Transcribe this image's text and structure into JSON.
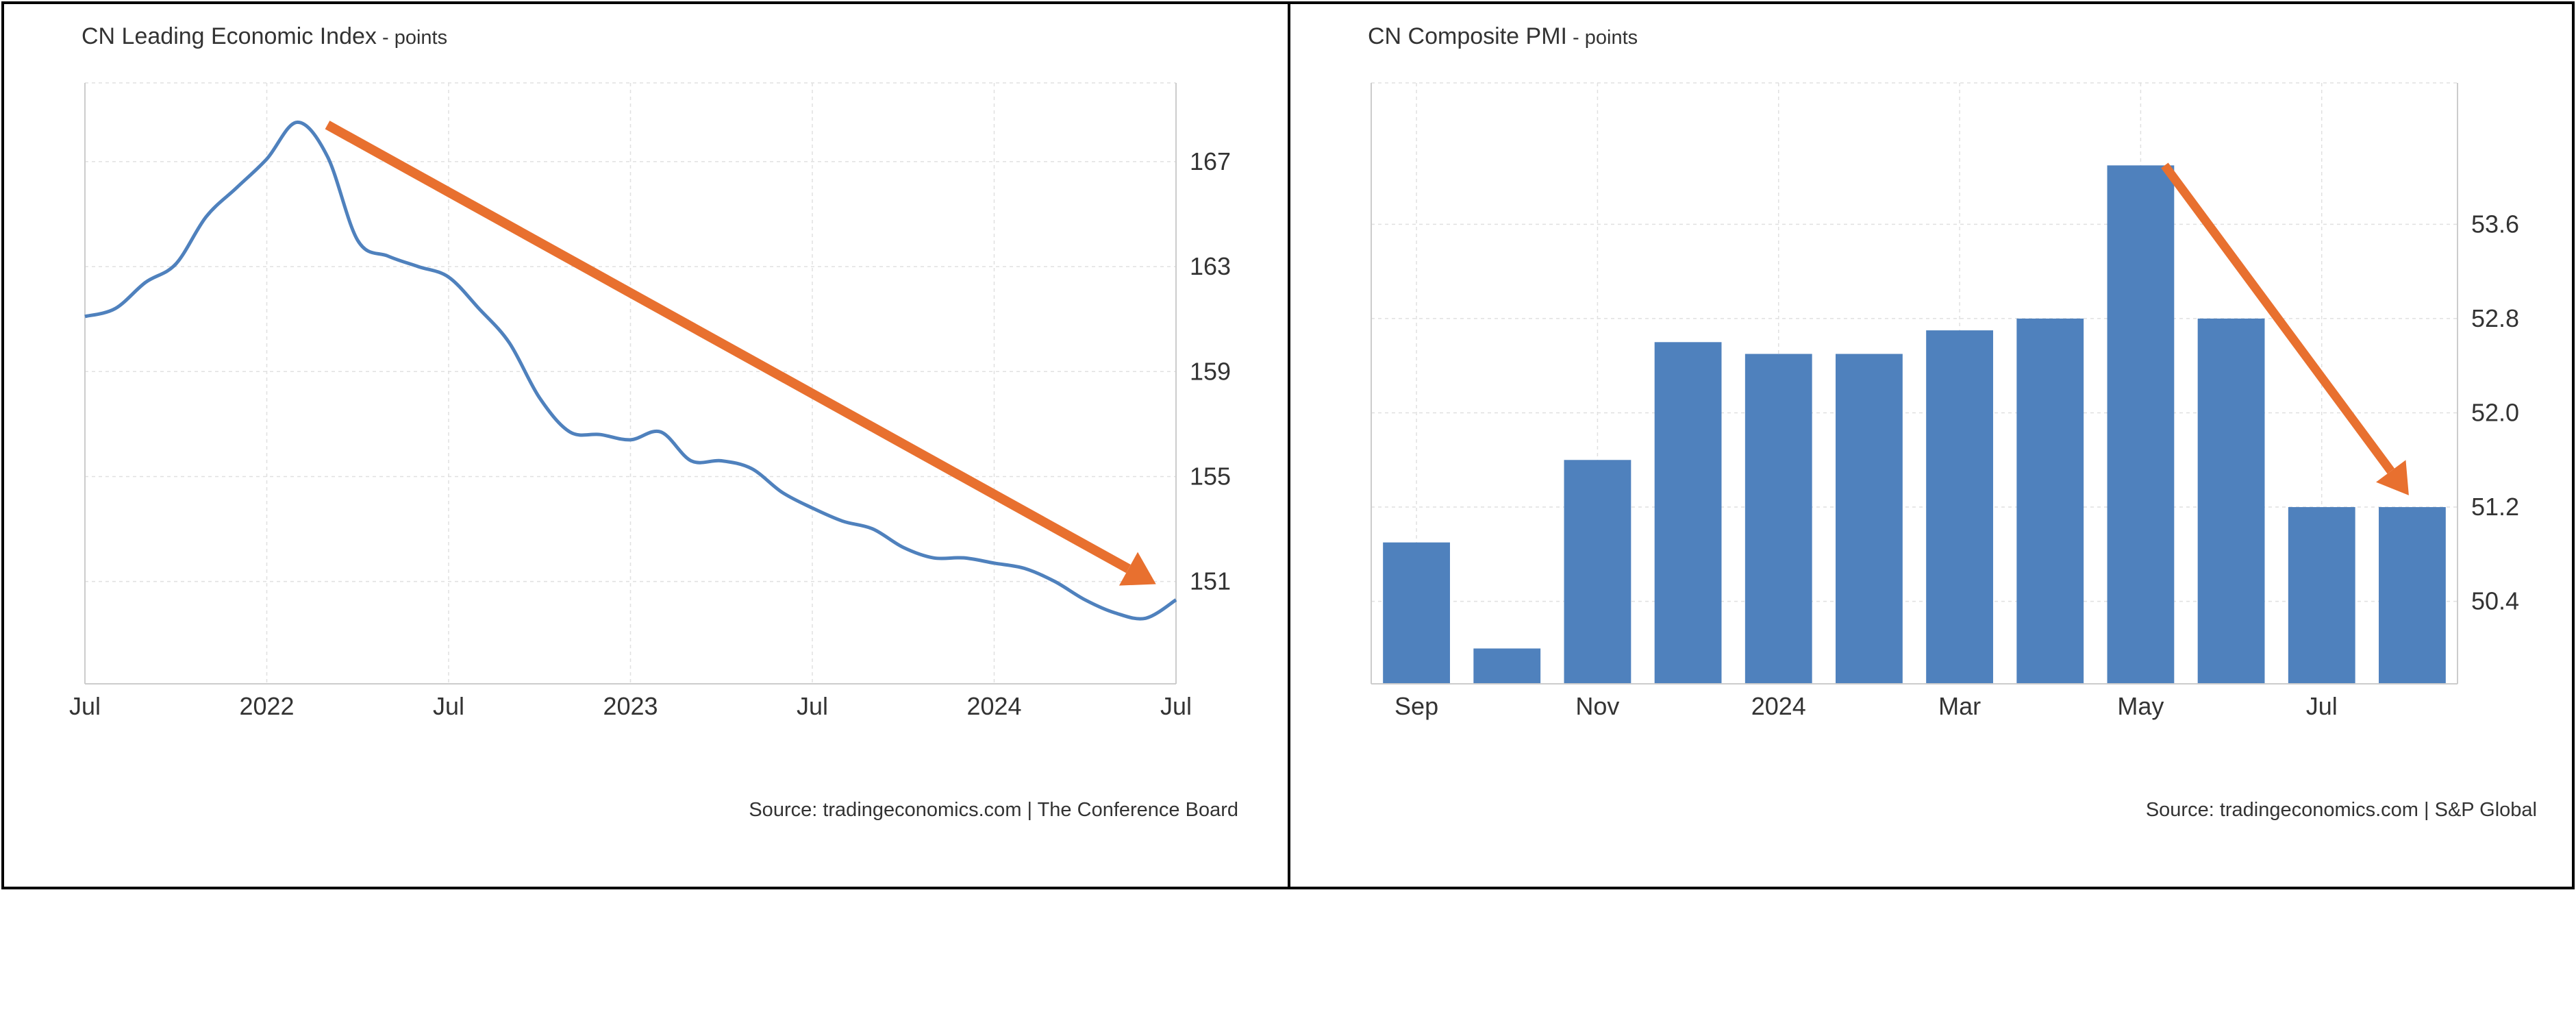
{
  "colors": {
    "series": "#4f81bd",
    "arrow": "#e8702f",
    "grid": "#e0e0e0",
    "axis": "#cccccc",
    "border": "#000000"
  },
  "charts": [
    {
      "title": "CN Leading Economic Index",
      "unit": " - points",
      "source": "Source: tradingeconomics.com | The Conference Board"
    },
    {
      "title": "CN Composite PMI",
      "unit": " - points",
      "source": "Source: tradingeconomics.com | S&P Global"
    }
  ],
  "chart_data": [
    {
      "type": "line",
      "title": "CN Leading Economic Index",
      "ylabel": "points",
      "x_tick_labels": [
        "Jul",
        "2022",
        "Jul",
        "2023",
        "Jul",
        "2024",
        "Jul"
      ],
      "x_tick_dates": [
        "2021-07",
        "2022-01",
        "2022-07",
        "2023-01",
        "2023-07",
        "2024-01",
        "2024-07"
      ],
      "y_ticks": [
        151,
        155,
        159,
        163,
        167
      ],
      "ylim": [
        147.1,
        170
      ],
      "xlim": [
        "2021-07",
        "2024-07"
      ],
      "y_axis_side": "right",
      "grid": true,
      "x": [
        "2021-07",
        "2021-08",
        "2021-09",
        "2021-10",
        "2021-11",
        "2021-12",
        "2022-01",
        "2022-02",
        "2022-03",
        "2022-04",
        "2022-05",
        "2022-06",
        "2022-07",
        "2022-08",
        "2022-09",
        "2022-10",
        "2022-11",
        "2022-12",
        "2023-01",
        "2023-02",
        "2023-03",
        "2023-04",
        "2023-05",
        "2023-06",
        "2023-07",
        "2023-08",
        "2023-09",
        "2023-10",
        "2023-11",
        "2023-12",
        "2024-01",
        "2024-02",
        "2024-03",
        "2024-04",
        "2024-05",
        "2024-06",
        "2024-07"
      ],
      "values": [
        161.1,
        161.4,
        162.4,
        163.1,
        164.9,
        166.0,
        167.1,
        168.5,
        167.2,
        164.0,
        163.4,
        163.0,
        162.6,
        161.4,
        160.1,
        158.0,
        156.7,
        156.6,
        156.4,
        156.7,
        155.6,
        155.6,
        155.3,
        154.4,
        153.8,
        153.3,
        153.0,
        152.3,
        151.9,
        151.9,
        151.7,
        151.5,
        151.0,
        150.3,
        149.8,
        149.6,
        150.3
      ],
      "annotations": [
        {
          "type": "arrow",
          "color": "#e8702f",
          "from": {
            "x": "2022-03",
            "y": 168.4
          },
          "to": {
            "x": "2024-06",
            "y": 150.9
          }
        }
      ]
    },
    {
      "type": "bar",
      "title": "CN Composite PMI",
      "ylabel": "points",
      "categories": [
        "2023-09",
        "2023-10",
        "2023-11",
        "2023-12",
        "2024-01",
        "2024-02",
        "2024-03",
        "2024-04",
        "2024-05",
        "2024-06",
        "2024-07",
        "2024-08"
      ],
      "x_tick_labels": [
        {
          "label": "Sep",
          "category": "2023-09"
        },
        {
          "label": "Nov",
          "category": "2023-11"
        },
        {
          "label": "2024",
          "category": "2024-01"
        },
        {
          "label": "Mar",
          "category": "2024-03"
        },
        {
          "label": "May",
          "category": "2024-05"
        },
        {
          "label": "Jul",
          "category": "2024-07"
        }
      ],
      "values": [
        50.9,
        50.0,
        51.6,
        52.6,
        52.5,
        52.5,
        52.7,
        52.8,
        54.1,
        52.8,
        51.2,
        51.2
      ],
      "y_ticks": [
        50.4,
        51.2,
        52.0,
        52.8,
        53.6
      ],
      "ylim": [
        49.7,
        54.8
      ],
      "y_axis_side": "right",
      "grid": true,
      "annotations": [
        {
          "type": "arrow",
          "color": "#e8702f",
          "from": {
            "category": "2024-05",
            "y": 54.1
          },
          "to": {
            "category": "2024-08",
            "y": 51.3
          }
        }
      ]
    }
  ]
}
